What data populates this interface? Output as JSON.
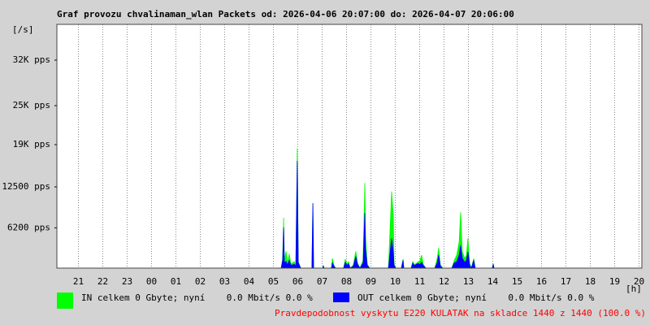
{
  "chart_data": {
    "type": "area",
    "title": "Graf provozu chvalinaman_wlan Packets od: 2026-04-06 20:07:00 do: 2026-04-07 20:06:00",
    "y_unit": "[/s]",
    "x_unit": "[h]",
    "footer_note": "Pravdepodobnost vyskytu E220 KULATAK na skladce 1440 z 1440 (100.0 %)",
    "xlim": [
      20.117,
      44.117
    ],
    "xticks": [
      21,
      22,
      23,
      {
        "value": 24,
        "label": "00"
      },
      {
        "value": 25,
        "label": "01"
      },
      {
        "value": 26,
        "label": "02"
      },
      {
        "value": 27,
        "label": "03"
      },
      {
        "value": 28,
        "label": "04"
      },
      {
        "value": 29,
        "label": "05"
      },
      {
        "value": 30,
        "label": "06"
      },
      {
        "value": 31,
        "label": "07"
      },
      {
        "value": 32,
        "label": "08"
      },
      {
        "value": 33,
        "label": "09"
      },
      {
        "value": 34,
        "label": "10"
      },
      {
        "value": 35,
        "label": "11"
      },
      {
        "value": 36,
        "label": "12"
      },
      {
        "value": 37,
        "label": "13"
      },
      {
        "value": 38,
        "label": "14"
      },
      {
        "value": 39,
        "label": "15"
      },
      {
        "value": 40,
        "label": "16"
      },
      {
        "value": 41,
        "label": "17"
      },
      {
        "value": 42,
        "label": "18"
      },
      {
        "value": 43,
        "label": "19"
      },
      {
        "value": 44,
        "label": "20"
      }
    ],
    "ylim": [
      0,
      37500
    ],
    "yticks": [
      {
        "value": 6200,
        "label": "6200 pps"
      },
      {
        "value": 12500,
        "label": "12500 pps"
      },
      {
        "value": 19000,
        "label": "19K pps"
      },
      {
        "value": 25000,
        "label": "25K pps"
      },
      {
        "value": 32000,
        "label": "32K pps"
      }
    ],
    "xgrid": true,
    "x": [
      20.12,
      29.32,
      29.38,
      29.42,
      29.45,
      29.52,
      29.58,
      29.65,
      29.72,
      29.85,
      29.92,
      29.98,
      30.02,
      30.12,
      30.58,
      30.62,
      30.65,
      31.02,
      31.05,
      31.08,
      31.38,
      31.42,
      31.48,
      31.55,
      31.88,
      31.95,
      32.02,
      32.08,
      32.15,
      32.28,
      32.38,
      32.45,
      32.55,
      32.68,
      32.75,
      32.78,
      32.85,
      32.95,
      33.72,
      33.82,
      33.85,
      33.92,
      33.95,
      34.02,
      34.25,
      34.32,
      34.35,
      34.65,
      34.72,
      34.78,
      34.92,
      35.02,
      35.08,
      35.15,
      35.25,
      35.62,
      35.72,
      35.78,
      35.85,
      35.95,
      36.32,
      36.42,
      36.52,
      36.62,
      36.68,
      36.75,
      36.85,
      36.92,
      36.98,
      37.05,
      37.12,
      37.22,
      37.28,
      37.98,
      38.02,
      38.05,
      44.1
    ],
    "series": [
      {
        "name": "IN celkem 0 Gbyte; nyní    0.0 Mbit/s 0.0 %",
        "color": "#00ff00",
        "values": [
          0,
          0,
          1500,
          7750,
          1200,
          2600,
          800,
          2200,
          600,
          1000,
          400,
          18400,
          1000,
          0,
          0,
          10000,
          0,
          0,
          400,
          0,
          0,
          1500,
          500,
          0,
          0,
          1400,
          600,
          1000,
          0,
          500,
          2600,
          800,
          0,
          1200,
          13100,
          5000,
          600,
          0,
          0,
          9000,
          11800,
          8000,
          700,
          0,
          0,
          1400,
          0,
          0,
          1000,
          500,
          900,
          1200,
          2000,
          600,
          0,
          0,
          1500,
          3100,
          500,
          0,
          0,
          1200,
          2000,
          4000,
          8600,
          2500,
          1500,
          2000,
          4600,
          800,
          0,
          1500,
          0,
          0,
          700,
          0,
          0
        ]
      },
      {
        "name": "OUT celkem 0 Gbyte; nyní    0.0 Mbit/s 0.0 %",
        "color": "#0000ff",
        "values": [
          0,
          0,
          1200,
          6250,
          900,
          1000,
          500,
          1200,
          400,
          600,
          300,
          16500,
          800,
          0,
          0,
          10000,
          0,
          0,
          300,
          0,
          0,
          800,
          300,
          0,
          0,
          900,
          400,
          700,
          0,
          300,
          1800,
          600,
          0,
          800,
          8500,
          3000,
          400,
          0,
          0,
          3500,
          4600,
          2500,
          400,
          0,
          0,
          1200,
          0,
          0,
          800,
          400,
          700,
          600,
          900,
          400,
          0,
          0,
          800,
          2000,
          300,
          0,
          0,
          800,
          1000,
          2000,
          3500,
          1500,
          900,
          1200,
          2500,
          500,
          0,
          1200,
          0,
          0,
          600,
          0,
          0
        ]
      }
    ]
  }
}
